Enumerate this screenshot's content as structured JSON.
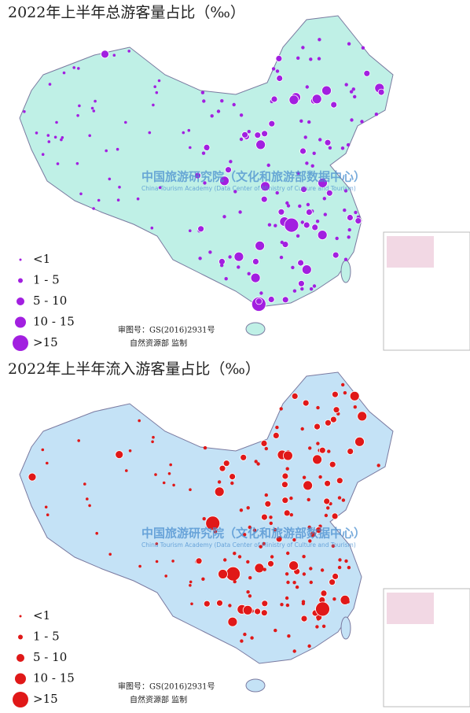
{
  "maps": [
    {
      "title": "2022年上半年总游客量占比（‰）",
      "legend": [
        "<1",
        "1 - 5",
        "5 - 10",
        "10 - 15",
        ">15"
      ],
      "approval_number": "审图号：GS(2016)2931号",
      "supervisor": "自然资源部 监制",
      "watermark": {
        "cn": "中国旅游研究院（文化和旅游部数据中心）",
        "en": "China Tourism Academy (Data Center of Ministry of Culture and Tourism)"
      }
    },
    {
      "title": "2022年上半年流入游客量占比（‰）",
      "legend": [
        "<1",
        "1 - 5",
        "5 - 10",
        "10 - 15",
        ">15"
      ],
      "approval_number": "审图号：GS(2016)2931号",
      "supervisor": "自然资源部 监制",
      "watermark": {
        "cn": "中国旅游研究院（文化和旅游部数据中心）",
        "en": "China Tourism Academy (Data Center of Ministry of Culture and Tourism)"
      }
    }
  ]
}
